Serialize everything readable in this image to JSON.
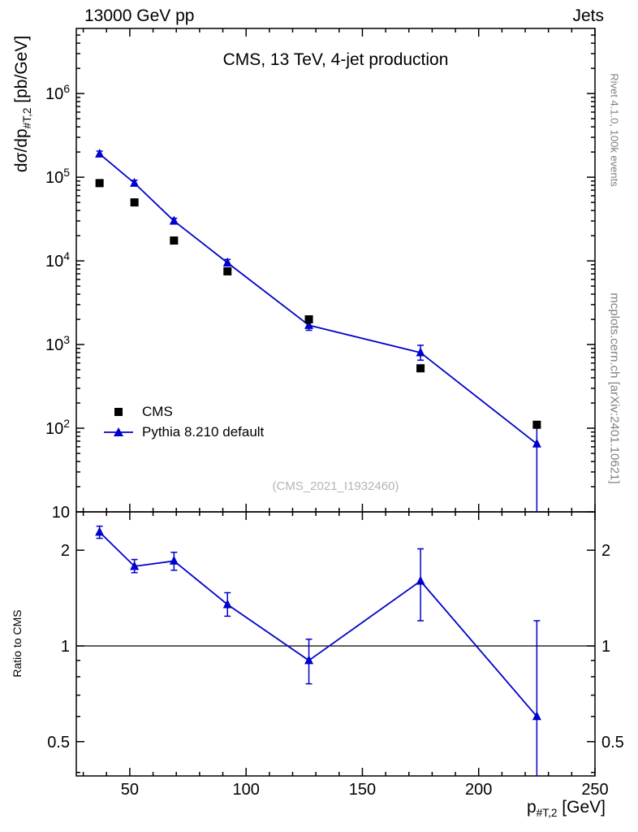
{
  "header": {
    "left": "13000 GeV pp",
    "right": "Jets"
  },
  "main_panel": {
    "title": "CMS, 13 TeV, 4-jet production",
    "watermark": "(CMS_2021_I1932460)",
    "ylabel": {
      "prefix": "dσ/dp",
      "sub": "#T,2",
      "suffix": " [pb/GeV]"
    }
  },
  "ratio_panel": {
    "ylabel": "Ratio to CMS"
  },
  "xaxis_title": {
    "prefix": "p",
    "sub": "#T,2",
    "suffix": " [GeV]"
  },
  "side_notes": {
    "top_right": "Rivet 4.1.0, 100k events",
    "bottom_right": "mcplots.cern.ch [arXiv:2401.10621]"
  },
  "legend": {
    "items": [
      {
        "label": "CMS",
        "marker": "square",
        "color": "#000000"
      },
      {
        "label": "Pythia 8.210 default",
        "marker": "triangle-line",
        "color": "#0000cc"
      }
    ]
  },
  "chart_data": {
    "type": "line",
    "title": "CMS, 13 TeV, 4-jet production",
    "xlabel": "p#T,2 [GeV]",
    "ylabel": "dσ/dp#T,2 [pb/GeV]",
    "ratio_ylabel": "Ratio to CMS",
    "x": [
      37,
      52,
      69,
      92,
      127,
      175,
      225
    ],
    "series": [
      {
        "name": "CMS",
        "marker": "square",
        "color": "#000000",
        "values": [
          85000,
          50000,
          17500,
          7500,
          2000,
          520,
          110
        ]
      },
      {
        "name": "Pythia 8.210 default",
        "marker": "triangle",
        "color": "#0000cc",
        "values": [
          190000,
          85000,
          30000,
          9500,
          1700,
          800,
          65
        ],
        "err_lo": [
          176000,
          79000,
          27800,
          8700,
          1480,
          650,
          4
        ],
        "err_hi": [
          205000,
          92000,
          32300,
          10400,
          1950,
          980,
          120
        ]
      }
    ],
    "ratio": {
      "name": "Pythia 8.210 default / CMS",
      "values": [
        2.28,
        1.78,
        1.85,
        1.35,
        0.9,
        1.6,
        0.6
      ],
      "err_lo": [
        2.18,
        1.7,
        1.73,
        1.24,
        0.76,
        1.2,
        0.33
      ],
      "err_hi": [
        2.38,
        1.87,
        1.97,
        1.47,
        1.05,
        2.02,
        1.2
      ]
    },
    "x_axis": {
      "lim": [
        27,
        250
      ],
      "ticks": [
        50,
        100,
        150,
        200,
        250
      ],
      "minor_step": 10
    },
    "main_y_axis": {
      "scale": "log",
      "lim": [
        10,
        6000000
      ],
      "decade_exponents": [
        1,
        2,
        3,
        4,
        5,
        6
      ]
    },
    "ratio_y_axis": {
      "scale": "log",
      "lim": [
        0.39,
        2.64
      ],
      "ticks": [
        0.5,
        1,
        2
      ],
      "minor_ticks": [
        0.4,
        0.6,
        0.7,
        0.8,
        0.9
      ],
      "reference_line": 1
    },
    "grid": false,
    "legend_position": "middle-left"
  }
}
